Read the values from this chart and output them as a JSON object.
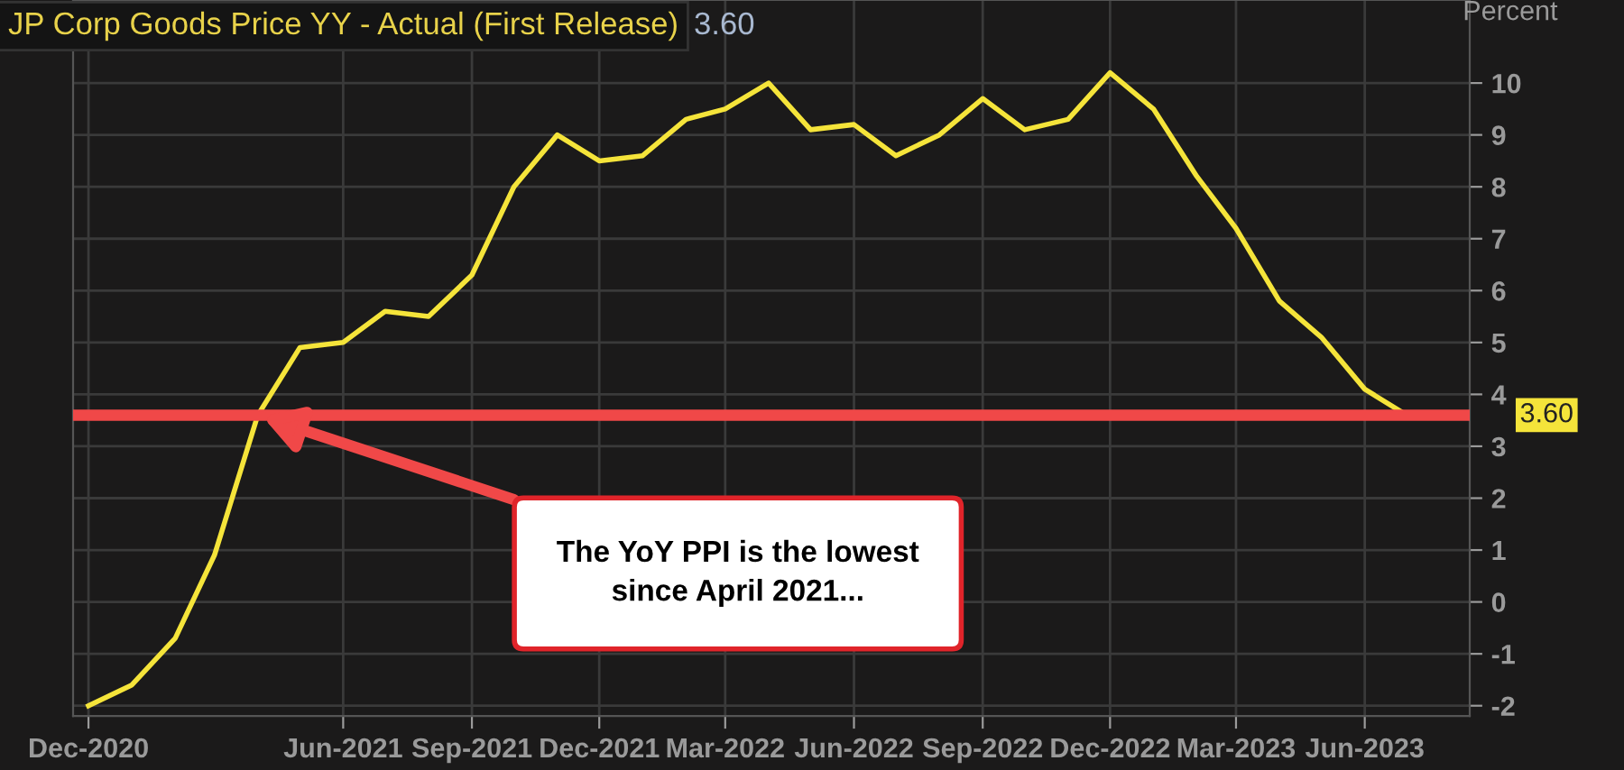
{
  "chart_data": {
    "type": "line",
    "title": "JP Corp Goods Price YY - Actual (First Release)",
    "subtitle": "3.60",
    "ylabel": "Percent",
    "x": [
      "2020-12",
      "2021-01",
      "2021-02",
      "2021-03",
      "2021-04",
      "2021-05",
      "2021-06",
      "2021-07",
      "2021-08",
      "2021-09",
      "2021-10",
      "2021-11",
      "2021-12",
      "2022-01",
      "2022-02",
      "2022-03",
      "2022-04",
      "2022-05",
      "2022-06",
      "2022-07",
      "2022-08",
      "2022-09",
      "2022-10",
      "2022-11",
      "2022-12",
      "2023-01",
      "2023-02",
      "2023-03",
      "2023-04",
      "2023-05",
      "2023-06",
      "2023-07"
    ],
    "series": [
      {
        "color": "#f5e43a",
        "values": [
          -2.0,
          -1.6,
          -0.7,
          0.9,
          3.6,
          4.9,
          5.0,
          5.6,
          5.5,
          6.3,
          8.0,
          9.0,
          8.5,
          8.6,
          9.3,
          9.5,
          10.0,
          9.1,
          9.2,
          8.6,
          9.0,
          9.7,
          9.1,
          9.3,
          10.2,
          9.5,
          8.2,
          7.2,
          5.8,
          5.1,
          4.1,
          3.6
        ]
      }
    ],
    "xlim": [
      "2020-11-20",
      "2023-08-15"
    ],
    "ylim": [
      -2.2,
      11.6
    ],
    "xticks": [
      {
        "value": "2020-12",
        "label": "Dec-2020"
      },
      {
        "value": "2021-06",
        "label": "Jun-2021"
      },
      {
        "value": "2021-09",
        "label": "Sep-2021"
      },
      {
        "value": "2021-12",
        "label": "Dec-2021"
      },
      {
        "value": "2022-03",
        "label": "Mar-2022"
      },
      {
        "value": "2022-06",
        "label": "Jun-2022"
      },
      {
        "value": "2022-09",
        "label": "Sep-2022"
      },
      {
        "value": "2022-12",
        "label": "Dec-2022"
      },
      {
        "value": "2023-03",
        "label": "Mar-2023"
      },
      {
        "value": "2023-06",
        "label": "Jun-2023"
      }
    ],
    "yticks": [
      -2,
      -1,
      0,
      1,
      2,
      3,
      4,
      5,
      6,
      7,
      8,
      9,
      10
    ],
    "ref_lines": [
      {
        "axis": "y",
        "value": 3.6,
        "label": "3.60",
        "color": "#f04848"
      }
    ],
    "annotations": [
      "The YoY PPI is the lowest since April 2021..."
    ],
    "grid": true,
    "marker": "none",
    "line_style": "solid",
    "legend": false
  }
}
